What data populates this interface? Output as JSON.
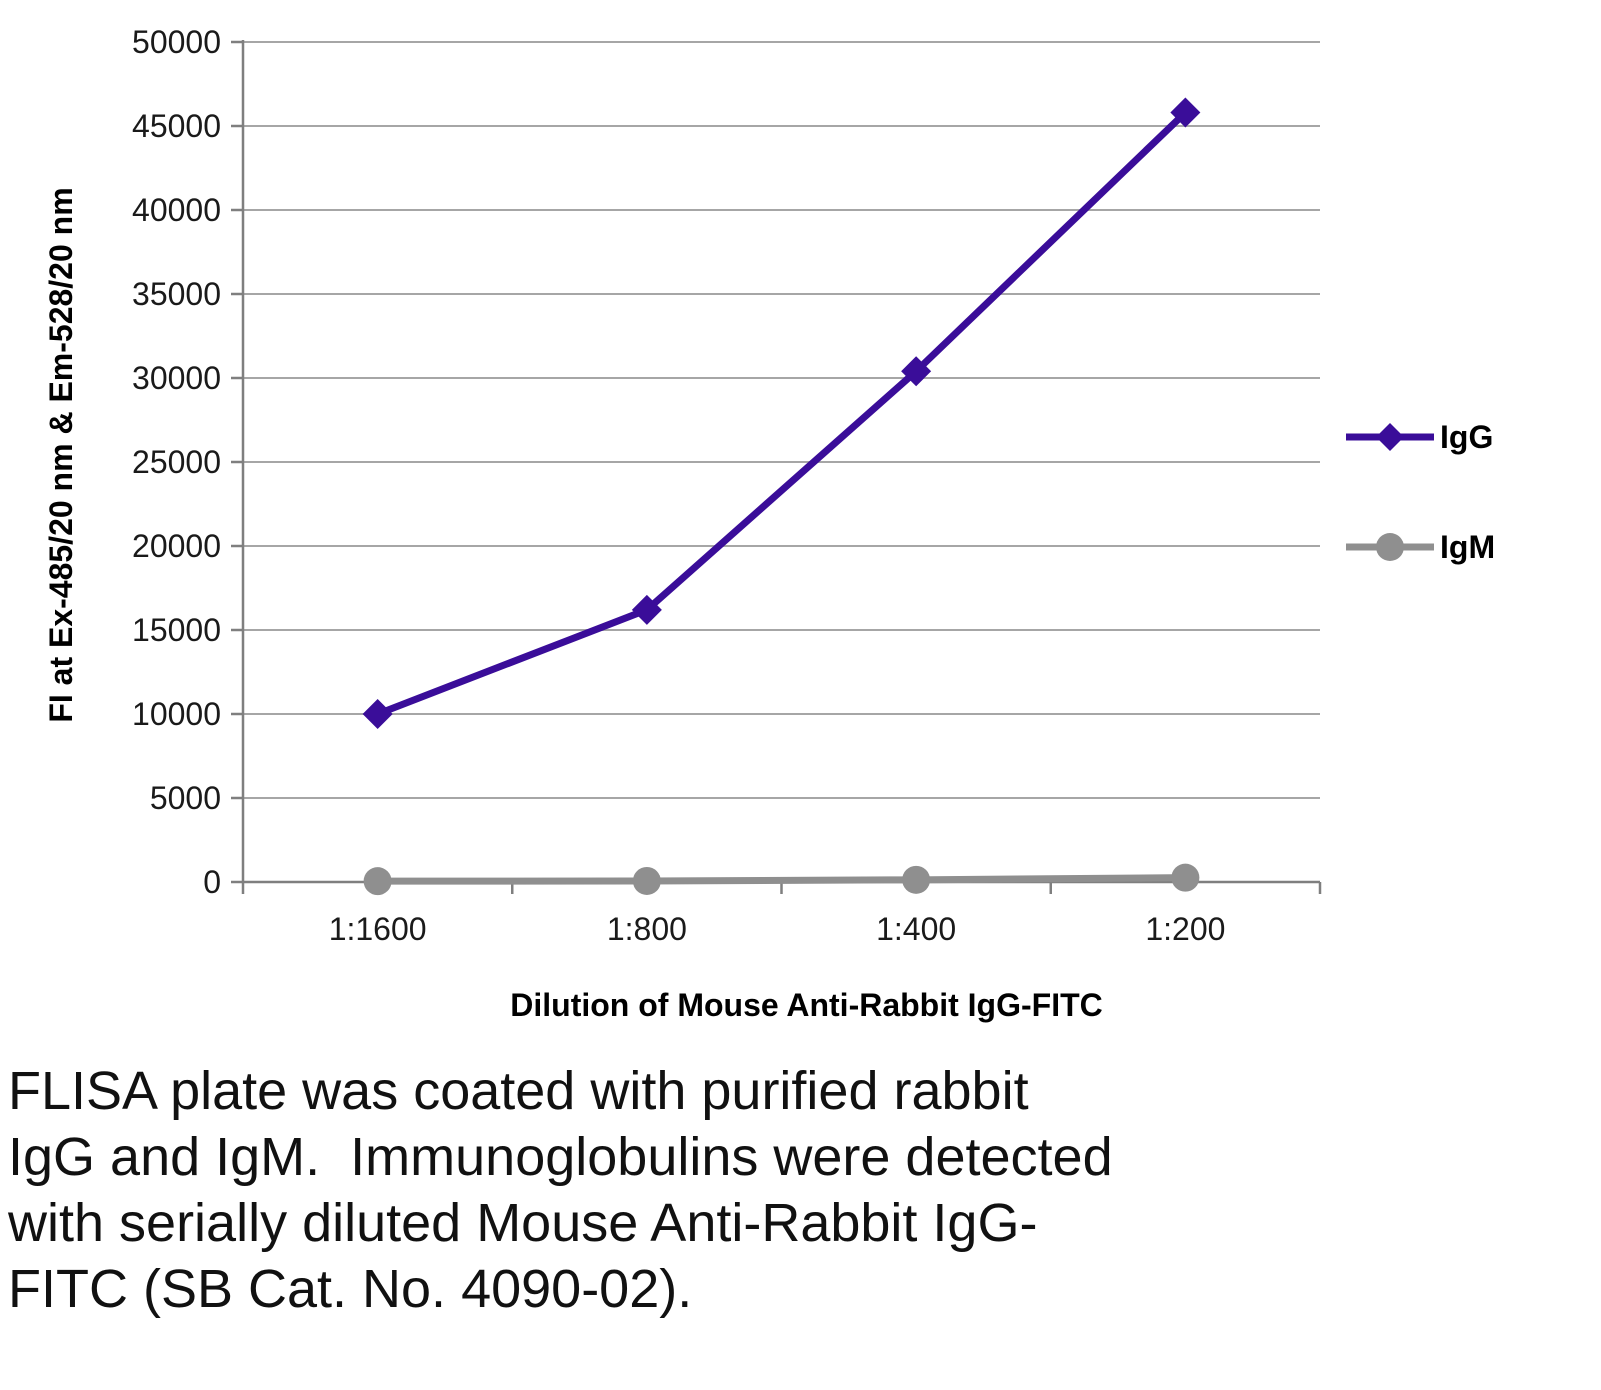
{
  "chart_data": {
    "type": "line",
    "title": "",
    "categories": [
      "1:1600",
      "1:800",
      "1:400",
      "1:200"
    ],
    "series": [
      {
        "name": "IgG",
        "values": [
          10000,
          16200,
          30400,
          45800
        ],
        "color": "#3a0d99",
        "marker": "diamond"
      },
      {
        "name": "IgM",
        "values": [
          50,
          60,
          130,
          260
        ],
        "color": "#8f8f8f",
        "marker": "circle"
      }
    ],
    "xlabel": "Dilution of Mouse Anti-Rabbit IgG-FITC",
    "ylabel": "FI at Ex-485/20 nm & Em-528/20 nm",
    "ylim": [
      0,
      50000
    ],
    "ytick_step": 5000,
    "ytick_labels": [
      "0",
      "5000",
      "10000",
      "15000",
      "20000",
      "25000",
      "30000",
      "35000",
      "40000",
      "45000",
      "50000"
    ],
    "grid": true,
    "legend_position": "right",
    "legend_entries": [
      "IgG",
      "IgM"
    ]
  },
  "caption_lines": [
    "FLISA plate was coated with purified rabbit",
    "IgG and IgM.  Immunoglobulins were detected",
    "with serially diluted Mouse Anti-Rabbit IgG-",
    "FITC (SB Cat. No. 4090-02)."
  ],
  "colors": {
    "grid": "#a6a6a6",
    "axis": "#7f7f7f",
    "igg": "#3a0d99",
    "igm": "#8f8f8f",
    "text": "#000000"
  }
}
